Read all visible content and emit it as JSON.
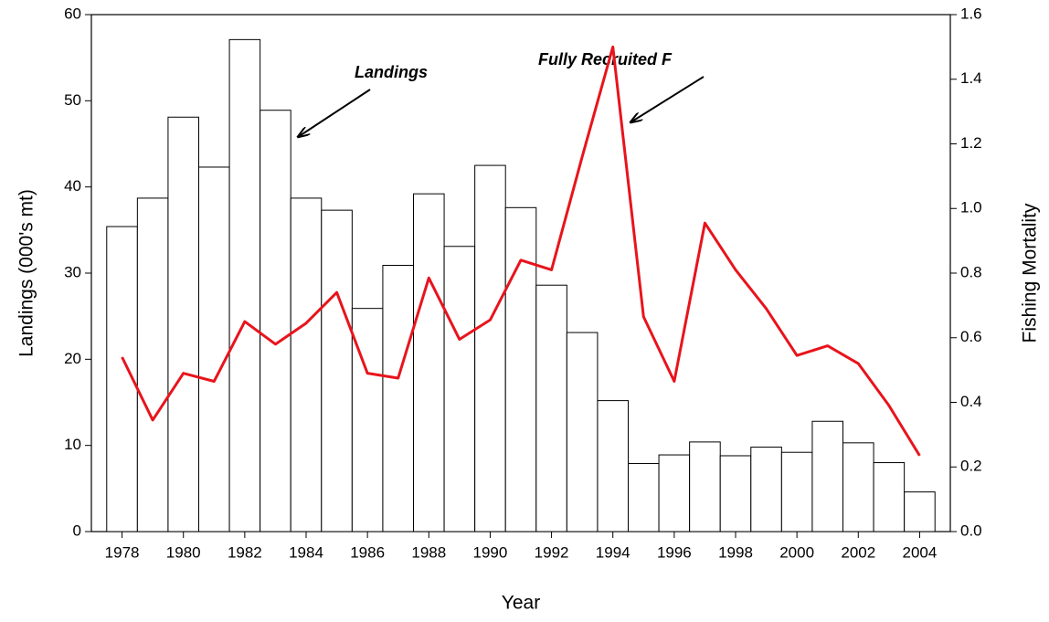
{
  "chart_data": {
    "type": "bar_line",
    "x_label": "Year",
    "y_label": "Landings (000's mt)",
    "y2_label": "Fishing Mortality",
    "x": [
      1978,
      1979,
      1980,
      1981,
      1982,
      1983,
      1984,
      1985,
      1986,
      1987,
      1988,
      1989,
      1990,
      1991,
      1992,
      1993,
      1994,
      1995,
      1996,
      1997,
      1998,
      1999,
      2000,
      2001,
      2002,
      2003,
      2004
    ],
    "series": [
      {
        "name": "Landings",
        "type": "bar",
        "color": "#ffffff",
        "values": [
          35.4,
          38.7,
          48.1,
          42.3,
          57.1,
          48.9,
          38.7,
          37.3,
          25.9,
          30.9,
          39.2,
          33.1,
          42.5,
          37.6,
          28.6,
          23.1,
          15.2,
          7.9,
          8.9,
          10.4,
          8.8,
          9.8,
          9.2,
          12.8,
          10.3,
          8.0,
          4.6
        ]
      },
      {
        "name": "Fully Recruited F",
        "type": "line",
        "axis": "y2",
        "color": "#e8141c",
        "values": [
          0.54,
          0.345,
          0.49,
          0.465,
          0.65,
          0.58,
          0.645,
          0.74,
          0.49,
          0.475,
          0.785,
          0.595,
          0.655,
          0.84,
          0.81,
          1.16,
          1.5,
          0.665,
          0.465,
          0.955,
          0.81,
          0.69,
          0.545,
          0.575,
          0.52,
          0.39,
          0.235
        ]
      }
    ],
    "annotations": [
      "Landings",
      "Fully Recruited F"
    ],
    "xlim": [
      1977,
      2005
    ],
    "xticks": [
      1978,
      1980,
      1982,
      1984,
      1986,
      1988,
      1990,
      1992,
      1994,
      1996,
      1998,
      2000,
      2002,
      2004
    ],
    "ylim": [
      0,
      60
    ],
    "yticks": [
      0,
      10,
      20,
      30,
      40,
      50,
      60
    ],
    "y2lim": [
      0,
      1.6
    ],
    "y2ticks": [
      {
        "value": 0,
        "label": "0.0"
      },
      0.2,
      0.4,
      0.6,
      0.8,
      {
        "value": 1,
        "label": "1.0"
      },
      1.2,
      1.4,
      1.6
    ]
  }
}
